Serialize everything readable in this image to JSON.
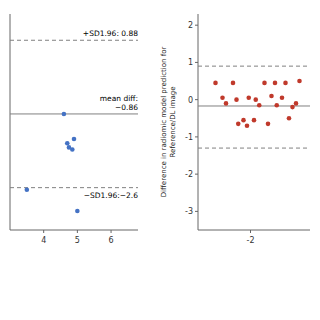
{
  "chart_data": [
    {
      "type": "scatter",
      "x": [
        3.5,
        4.6,
        4.7,
        4.75,
        4.85,
        4.9,
        5.0
      ],
      "values": [
        -2.65,
        -0.86,
        -1.55,
        -1.65,
        -1.7,
        -1.45,
        -3.15
      ],
      "color": "#4472c4",
      "mean_diff": -0.86,
      "upper_loa": 0.88,
      "lower_loa": -2.6,
      "annotations": [
        "+SD1.96: 0.88",
        "mean diff:\n−0.86",
        "−SD1.96:−2.6"
      ],
      "xlim": [
        3.0,
        6.8
      ],
      "ylim": [
        -3.6,
        1.5
      ],
      "xticks": [
        4,
        5,
        6
      ],
      "tick_labels": "x"
    },
    {
      "type": "scatter",
      "x": [
        -3.0,
        -2.8,
        -2.7,
        -2.5,
        -2.4,
        -2.35,
        -2.2,
        -2.1,
        -2.05,
        -1.9,
        -1.85,
        -1.75,
        -1.6,
        -1.5,
        -1.4,
        -1.3,
        -1.25,
        -1.1,
        -1.0,
        -0.9,
        -0.8,
        -0.7,
        -0.6
      ],
      "values": [
        0.45,
        0.05,
        -0.1,
        0.45,
        0.0,
        -0.65,
        -0.55,
        -0.7,
        0.05,
        -0.55,
        0.0,
        -0.15,
        0.45,
        -0.65,
        0.1,
        0.45,
        -0.15,
        0.05,
        0.45,
        -0.5,
        -0.2,
        -0.1,
        0.5
      ],
      "color": "#c0392b",
      "mean_diff": -0.17,
      "upper_loa": 0.9,
      "lower_loa": -1.3,
      "ylabel": "Difference in radiomic model prediction for\nReference/DL image",
      "xlim": [
        -3.5,
        -0.3
      ],
      "ylim": [
        -3.5,
        2.3
      ],
      "xticks": [
        -2
      ],
      "yticks": [
        -3,
        -2,
        -1,
        0,
        1,
        2
      ]
    }
  ]
}
